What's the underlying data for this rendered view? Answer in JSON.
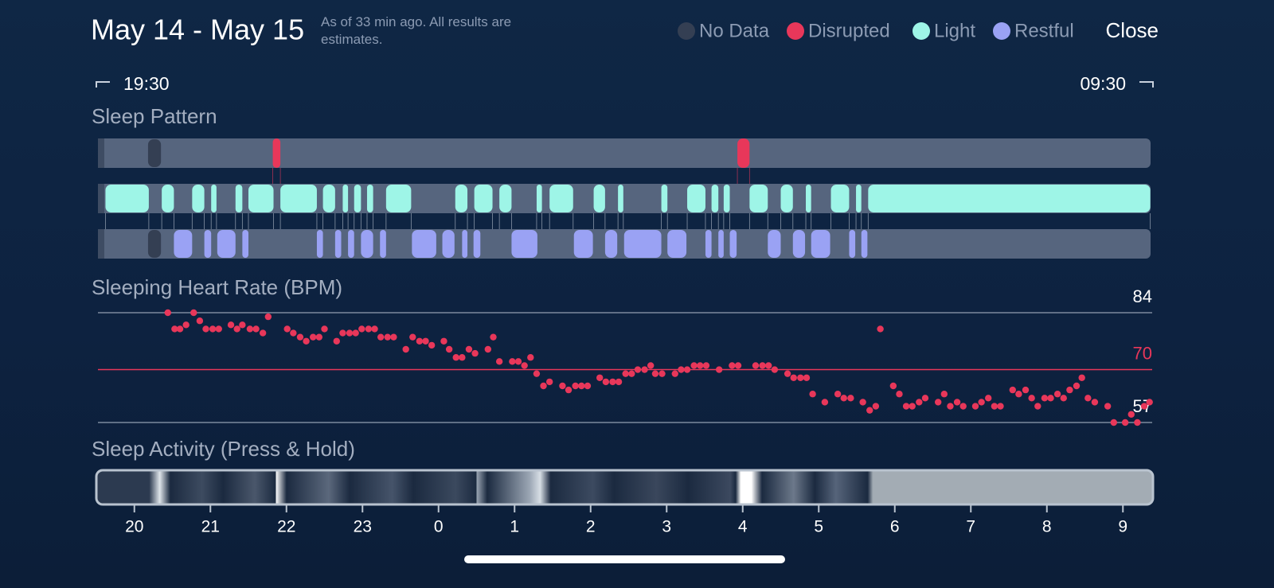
{
  "header": {
    "title": "May 14 - May 15",
    "subtitle": "As of 33 min ago. All results are estimates.",
    "close": "Close"
  },
  "chart_data": [
    {
      "type": "timeline",
      "title": "Sleep Pattern",
      "xlim": [
        0,
        14
      ],
      "range_labels": [
        "19:30",
        "09:30"
      ],
      "series": [
        {
          "name": "No Data",
          "color": "#343f53",
          "segments": [
            [
              0.68,
              0.85
            ]
          ]
        },
        {
          "name": "Disrupted",
          "color": "#e8375a",
          "segments": [
            [
              2.32,
              2.42
            ],
            [
              8.43,
              8.59
            ]
          ]
        },
        {
          "name": "Light",
          "color": "#9ef5e7",
          "segments": [
            [
              0.12,
              0.69
            ],
            [
              0.86,
              1.02
            ],
            [
              1.26,
              1.42
            ],
            [
              1.51,
              1.58
            ],
            [
              1.83,
              1.92
            ],
            [
              2.0,
              2.33
            ],
            [
              2.42,
              2.9
            ],
            [
              2.98,
              3.14
            ],
            [
              3.24,
              3.31
            ],
            [
              3.39,
              3.48
            ],
            [
              3.56,
              3.64
            ],
            [
              3.81,
              4.14
            ],
            [
              4.72,
              4.88
            ],
            [
              4.97,
              5.21
            ],
            [
              5.3,
              5.46
            ],
            [
              5.79,
              5.86
            ],
            [
              5.96,
              6.27
            ],
            [
              6.54,
              6.69
            ],
            [
              6.86,
              6.93
            ],
            [
              7.43,
              7.51
            ],
            [
              7.77,
              8.01
            ],
            [
              8.09,
              8.18
            ],
            [
              8.25,
              8.33
            ],
            [
              8.59,
              8.83
            ],
            [
              9.0,
              9.16
            ],
            [
              9.33,
              9.4
            ],
            [
              9.66,
              9.9
            ],
            [
              9.99,
              10.06
            ],
            [
              10.15,
              13.86
            ]
          ]
        },
        {
          "name": "Restful",
          "color": "#9aa2f4",
          "segments": [
            [
              1.02,
              1.26
            ],
            [
              1.42,
              1.51
            ],
            [
              1.59,
              1.83
            ],
            [
              1.92,
              2.0
            ],
            [
              2.9,
              2.98
            ],
            [
              3.14,
              3.22
            ],
            [
              3.31,
              3.39
            ],
            [
              3.48,
              3.64
            ],
            [
              3.73,
              3.81
            ],
            [
              4.15,
              4.47
            ],
            [
              4.55,
              4.71
            ],
            [
              4.81,
              4.88
            ],
            [
              4.96,
              5.05
            ],
            [
              5.46,
              5.8
            ],
            [
              6.28,
              6.53
            ],
            [
              6.69,
              6.85
            ],
            [
              6.94,
              7.43
            ],
            [
              7.51,
              7.76
            ],
            [
              8.01,
              8.09
            ],
            [
              8.18,
              8.25
            ],
            [
              8.33,
              8.42
            ],
            [
              8.83,
              9.0
            ],
            [
              9.16,
              9.32
            ],
            [
              9.4,
              9.65
            ],
            [
              9.9,
              9.98
            ],
            [
              10.06,
              10.14
            ]
          ]
        }
      ]
    },
    {
      "type": "scatter",
      "title": "Sleeping Heart Rate (BPM)",
      "color": "#e8375a",
      "xlim": [
        0,
        14
      ],
      "ylim": [
        57,
        84
      ],
      "yticks": [
        57,
        70,
        84
      ],
      "ytick_colors": [
        "#7d8a9e",
        "#e8375a",
        "#7d8a9e"
      ],
      "ytick_label_colors": [
        "#ffffff",
        "#e8375a",
        "#ffffff"
      ],
      "x": [
        0.94,
        1.03,
        1.1,
        1.18,
        1.28,
        1.36,
        1.44,
        1.53,
        1.61,
        1.77,
        1.85,
        1.92,
        2.02,
        2.1,
        2.19,
        2.26,
        2.51,
        2.59,
        2.68,
        2.76,
        2.85,
        2.93,
        3.0,
        3.16,
        3.24,
        3.33,
        3.41,
        3.49,
        3.58,
        3.66,
        3.74,
        3.83,
        3.91,
        4.07,
        4.16,
        4.25,
        4.33,
        4.41,
        4.57,
        4.64,
        4.73,
        4.81,
        4.9,
        4.98,
        5.15,
        5.22,
        5.3,
        5.47,
        5.55,
        5.63,
        5.71,
        5.79,
        5.88,
        5.96,
        6.13,
        6.21,
        6.3,
        6.38,
        6.46,
        6.62,
        6.7,
        6.79,
        6.87,
        6.96,
        7.04,
        7.12,
        7.21,
        7.29,
        7.35,
        7.44,
        7.61,
        7.69,
        7.77,
        7.86,
        7.94,
        8.02,
        8.19,
        8.36,
        8.44,
        8.67,
        8.76,
        8.84,
        8.92,
        9.09,
        9.17,
        9.26,
        9.34,
        9.42,
        9.58,
        9.75,
        9.83,
        9.92,
        10.08,
        10.17,
        10.25,
        10.31,
        10.48,
        10.56,
        10.65,
        10.73,
        10.82,
        10.9,
        11.07,
        11.15,
        11.23,
        11.32,
        11.4,
        11.56,
        11.64,
        11.73,
        11.81,
        11.89,
        12.05,
        12.13,
        12.22,
        12.3,
        12.38,
        12.47,
        12.55,
        12.64,
        12.72,
        12.8,
        12.89,
        12.96,
        13.04,
        13.13,
        13.3,
        13.38,
        13.53,
        13.61,
        13.69,
        13.78,
        13.85
      ],
      "values": [
        84,
        80,
        80,
        81,
        84,
        82,
        80,
        80,
        80,
        81,
        80,
        81,
        80,
        80,
        79,
        83,
        80,
        79,
        78,
        77,
        78,
        78,
        80,
        77,
        79,
        79,
        79,
        80,
        80,
        80,
        78,
        78,
        78,
        75,
        78,
        77,
        77,
        76,
        77,
        75,
        73,
        73,
        75,
        74,
        75,
        78,
        72,
        72,
        72,
        71,
        73,
        69,
        66,
        67,
        66,
        65,
        66,
        66,
        66,
        68,
        67,
        67,
        67,
        69,
        69,
        70,
        70,
        71,
        69,
        69,
        69,
        70,
        70,
        71,
        71,
        71,
        70,
        71,
        71,
        71,
        71,
        71,
        70,
        69,
        68,
        68,
        68,
        64,
        62,
        64,
        63,
        63,
        62,
        60,
        61,
        80,
        66,
        64,
        61,
        61,
        62,
        63,
        62,
        64,
        61,
        62,
        61,
        61,
        62,
        63,
        61,
        61,
        65,
        64,
        65,
        63,
        61,
        63,
        63,
        64,
        63,
        65,
        66,
        68,
        63,
        62,
        61,
        57,
        57,
        59,
        57,
        61,
        62
      ]
    },
    {
      "type": "activity",
      "title": "Sleep Activity (Press & Hold)",
      "xlim": [
        0,
        14
      ],
      "xticks": [
        {
          "value": 0.5,
          "label": "20"
        },
        {
          "value": 1.5,
          "label": "21"
        },
        {
          "value": 2.5,
          "label": "22"
        },
        {
          "value": 3.5,
          "label": "23"
        },
        {
          "value": 4.5,
          "label": "0"
        },
        {
          "value": 5.5,
          "label": "1"
        },
        {
          "value": 6.5,
          "label": "2"
        },
        {
          "value": 7.5,
          "label": "3"
        },
        {
          "value": 8.5,
          "label": "4"
        },
        {
          "value": 9.5,
          "label": "5"
        },
        {
          "value": 10.5,
          "label": "6"
        },
        {
          "value": 11.5,
          "label": "7"
        },
        {
          "value": 12.5,
          "label": "8"
        },
        {
          "value": 13.5,
          "label": "9"
        }
      ]
    }
  ]
}
